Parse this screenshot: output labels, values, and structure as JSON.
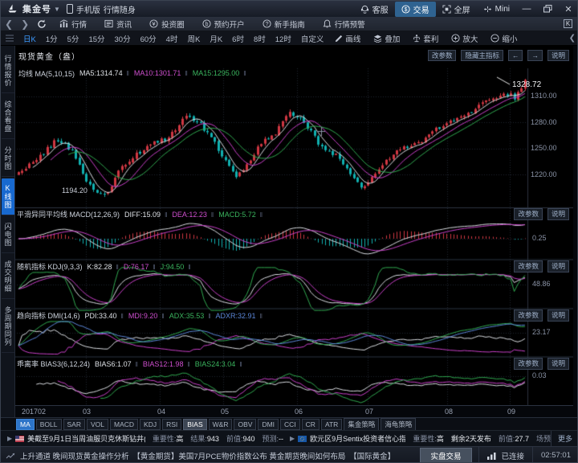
{
  "titlebar": {
    "app": "集金号",
    "device": "手机版",
    "slogan": "行情随身",
    "service": "客服",
    "trade": "交易",
    "fullscreen": "全屏",
    "mini": "Mini"
  },
  "navbar": {
    "quotes": "行情",
    "news": "资讯",
    "circle": "投资圈",
    "account": "预约开户",
    "guide": "新手指南",
    "alert": "行情预警",
    "corner": "K"
  },
  "periodbar": {
    "periods": [
      "日K",
      "1分",
      "5分",
      "15分",
      "30分",
      "60分",
      "4时",
      "周K",
      "月K",
      "6时",
      "8时",
      "12时",
      "自定义"
    ],
    "active": "日K",
    "draw": "画线",
    "overlay": "叠加",
    "arbitrage": "套利",
    "zoom_in": "放大",
    "zoom_out": "缩小"
  },
  "sidebar": {
    "items": [
      "行情报价",
      "综合看盘",
      "分时图",
      "K线图",
      "闪电图",
      "成交明细",
      "多周期同列"
    ],
    "active": "K线图"
  },
  "main_chart": {
    "instrument": "现货黄金（盎）",
    "btn_params": "改参数",
    "btn_hide": "隐藏主指标",
    "btn_prev": "←",
    "btn_next": "→",
    "btn_help": "说明",
    "ma_title": "均线 MA(5,10,15)",
    "ma5": "MA5:1314.74",
    "ma10": "MA10:1301.71",
    "ma15": "MA15:1295.00",
    "axis": [
      "1310.00",
      "1280.00",
      "1250.00",
      "1220.00"
    ],
    "low_label": "1194.20",
    "last_label": "1328.72"
  },
  "panel_buttons": {
    "params": "改参数",
    "help": "说明"
  },
  "panels": {
    "macd": {
      "title": "平滑异同平均线 MACD(12,26,9)",
      "v1": "DIFF:15.09",
      "v2": "DEA:12.23",
      "v3": "MACD:5.72",
      "axis": "0.25"
    },
    "kdj": {
      "title": "随机指标 KDJ(9,3,3)",
      "v1": "K:82.28",
      "v2": "D:76.17",
      "v3": "J:94.50",
      "axis": "48.86"
    },
    "dmi": {
      "title": "趋向指标 DMI(14,6)",
      "v1": "PDI:33.40",
      "v2": "MDI:9.20",
      "v3": "ADX:35.53",
      "v4": "ADXR:32.91",
      "axis": "23.17"
    },
    "bias": {
      "title": "乖离率 BIAS3(6,12,24)",
      "v1": "BIAS6:1.07",
      "v2": "BIAS12:1.98",
      "v3": "BIAS24:3.04",
      "axis": "0.03"
    }
  },
  "xaxis": [
    "201702",
    "03",
    "04",
    "05",
    "06",
    "07",
    "08",
    "09"
  ],
  "tabs": {
    "items": [
      "MA",
      "BOLL",
      "SAR",
      "VOL",
      "MACD",
      "KDJ",
      "RSI",
      "BIAS",
      "W&R",
      "OBV",
      "DMI",
      "CCI",
      "CR",
      "ATR",
      "集金策略",
      "海龟策略"
    ],
    "active": "MA",
    "active2": "BIAS"
  },
  "infobar": {
    "item1": {
      "name": "美截至9月1日当周油服贝克休斯钻井(口)",
      "imp_label": "重要性:",
      "imp": "高",
      "result_label": "结果:",
      "result": "943",
      "prev_label": "前值:",
      "prev": "940",
      "forecast_label": "预测:",
      "forecast": "--"
    },
    "item2": {
      "name": "欧元区9月Sentix投资者信心指",
      "imp_label": "重要性:",
      "imp": "高",
      "countdown": "剩余2天发布",
      "prev_label": "前值:",
      "prev": "27.7",
      "trail": "场预"
    },
    "more": "更多"
  },
  "statusbar": {
    "news": "上升通道 晚间现货黄金操作分析　【黄金期货】美国7月PCE物价指数公布 黄金期货晚间如何布局　【国际黄金】",
    "trade_button": "实盘交易",
    "connection": "已连接",
    "time": "02:57:01"
  },
  "colors": {
    "up": "#cf3742",
    "down": "#10b0b0",
    "ma5": "#d8dbe0",
    "ma10": "#c93fc9",
    "ma15": "#2fa84f",
    "blue": "#5b86d8",
    "accent": "#2d74c8"
  },
  "chart_data": {
    "type": "candlestick",
    "instrument": "现货黄金",
    "period": "日K",
    "days": 143,
    "low": 1194.2,
    "last_close": 1328.72,
    "low_day": 24,
    "price_axis": [
      1310,
      1280,
      1250,
      1220
    ],
    "price_range": [
      1185,
      1342
    ],
    "x_months": [
      "201702",
      "03",
      "04",
      "05",
      "06",
      "07",
      "08",
      "09"
    ],
    "waypoints": [
      [
        0,
        1222
      ],
      [
        5,
        1238
      ],
      [
        11,
        1261
      ],
      [
        15,
        1247
      ],
      [
        19,
        1212
      ],
      [
        24,
        1194.5
      ],
      [
        29,
        1230
      ],
      [
        36,
        1252
      ],
      [
        42,
        1262
      ],
      [
        47,
        1288
      ],
      [
        50,
        1282
      ],
      [
        54,
        1262
      ],
      [
        58,
        1237
      ],
      [
        61,
        1215
      ],
      [
        64,
        1229
      ],
      [
        68,
        1256
      ],
      [
        72,
        1267
      ],
      [
        76,
        1293
      ],
      [
        80,
        1279
      ],
      [
        84,
        1257
      ],
      [
        89,
        1241
      ],
      [
        94,
        1213
      ],
      [
        97,
        1205
      ],
      [
        101,
        1227
      ],
      [
        105,
        1243
      ],
      [
        109,
        1252
      ],
      [
        113,
        1259
      ],
      [
        117,
        1271
      ],
      [
        121,
        1281
      ],
      [
        125,
        1287
      ],
      [
        129,
        1299
      ],
      [
        133,
        1307
      ],
      [
        136,
        1315
      ],
      [
        139,
        1309
      ],
      [
        141,
        1321
      ],
      [
        142,
        1328.72
      ]
    ],
    "indicators": {
      "ma": [
        5,
        10,
        15
      ],
      "macd": [
        12,
        26,
        9
      ],
      "kdj": [
        9,
        3,
        3
      ],
      "dmi": [
        14,
        6
      ],
      "bias": [
        6,
        12,
        24
      ]
    }
  }
}
